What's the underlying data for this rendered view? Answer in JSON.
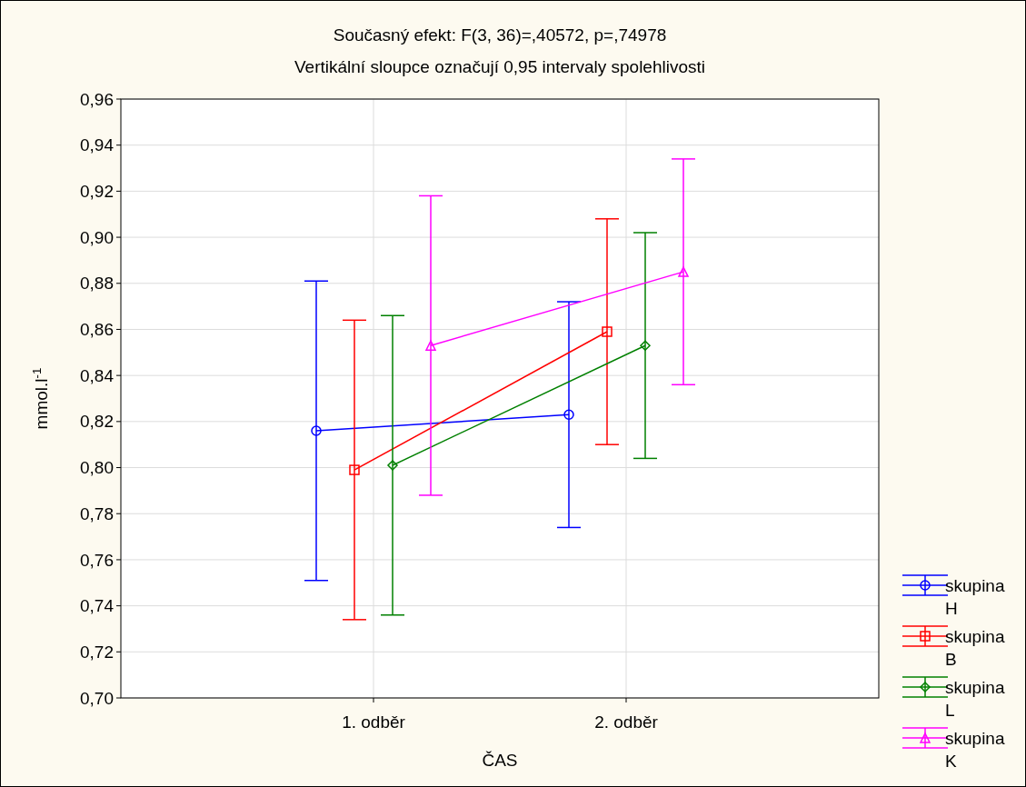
{
  "chart_data": {
    "type": "line",
    "title": "Současný efekt: F(3, 36)=,40572, p=,74978",
    "subtitle": "Vertikální sloupce označují 0,95 intervaly spolehlivosti",
    "xlabel": "ČAS",
    "ylabel": "mmol.l$^{-1}$",
    "categories": [
      "1. odběr",
      "2. odběr"
    ],
    "series": [
      {
        "name": "skupina H",
        "color": "#0000ff",
        "marker": "circle",
        "values": [
          0.816,
          0.823
        ],
        "errors": [
          [
            0.751,
            0.881
          ],
          [
            0.774,
            0.872
          ]
        ]
      },
      {
        "name": "skupina B",
        "color": "#ff0000",
        "marker": "square",
        "values": [
          0.799,
          0.859
        ],
        "errors": [
          [
            0.734,
            0.864
          ],
          [
            0.81,
            0.908
          ]
        ]
      },
      {
        "name": "skupina L",
        "color": "#008000",
        "marker": "diamond",
        "values": [
          0.801,
          0.853
        ],
        "errors": [
          [
            0.736,
            0.866
          ],
          [
            0.804,
            0.902
          ]
        ]
      },
      {
        "name": "skupina K",
        "color": "#ff00ff",
        "marker": "triangle",
        "values": [
          0.853,
          0.885
        ],
        "errors": [
          [
            0.788,
            0.918
          ],
          [
            0.836,
            0.934
          ]
        ]
      }
    ],
    "ylim": [
      0.7,
      0.96
    ],
    "yticks": [
      {
        "value": 0.7,
        "label": "0,70"
      },
      {
        "value": 0.72,
        "label": "0,72"
      },
      {
        "value": 0.74,
        "label": "0,74"
      },
      {
        "value": 0.76,
        "label": "0,76"
      },
      {
        "value": 0.78,
        "label": "0,78"
      },
      {
        "value": 0.8,
        "label": "0,80"
      },
      {
        "value": 0.82,
        "label": "0,82"
      },
      {
        "value": 0.84,
        "label": "0,84"
      },
      {
        "value": 0.86,
        "label": "0,86"
      },
      {
        "value": 0.88,
        "label": "0,88"
      },
      {
        "value": 0.9,
        "label": "0,90"
      },
      {
        "value": 0.92,
        "label": "0,92"
      },
      {
        "value": 0.94,
        "label": "0,94"
      },
      {
        "value": 0.96,
        "label": "0,96"
      }
    ],
    "grid": true,
    "legend": "bottom right"
  }
}
